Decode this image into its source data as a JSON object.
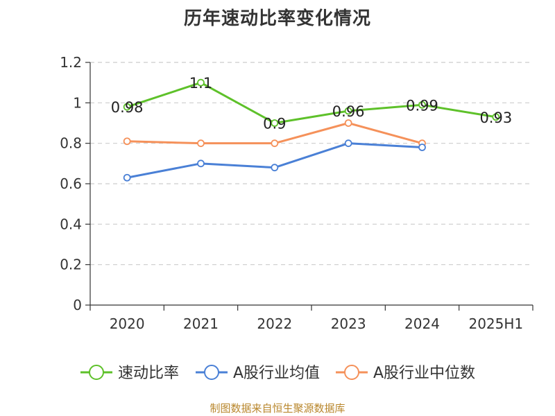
{
  "chart_data": {
    "type": "line",
    "title": "历年速动比率变化情况",
    "categories": [
      "2020",
      "2021",
      "2022",
      "2023",
      "2024",
      "2025H1"
    ],
    "yticks": [
      "0",
      "0.2",
      "0.4",
      "0.6",
      "0.8",
      "1",
      "1.2"
    ],
    "ylim": [
      0,
      1.2
    ],
    "grid": true,
    "legend_position": "bottom",
    "series": [
      {
        "name": "速动比率",
        "color": "#5ec12a",
        "values": [
          0.98,
          1.1,
          0.9,
          0.96,
          0.99,
          0.93
        ],
        "labels": [
          "0.98",
          "1.1",
          "0.9",
          "0.96",
          "0.99",
          "0.93"
        ]
      },
      {
        "name": "A股行业均值",
        "color": "#4a80d6",
        "values": [
          0.63,
          0.7,
          0.68,
          0.8,
          0.78,
          null
        ]
      },
      {
        "name": "A股行业中位数",
        "color": "#f5915a",
        "values": [
          0.81,
          0.8,
          0.8,
          0.9,
          0.8,
          null
        ]
      }
    ]
  },
  "source": "制图数据来自恒生聚源数据库"
}
